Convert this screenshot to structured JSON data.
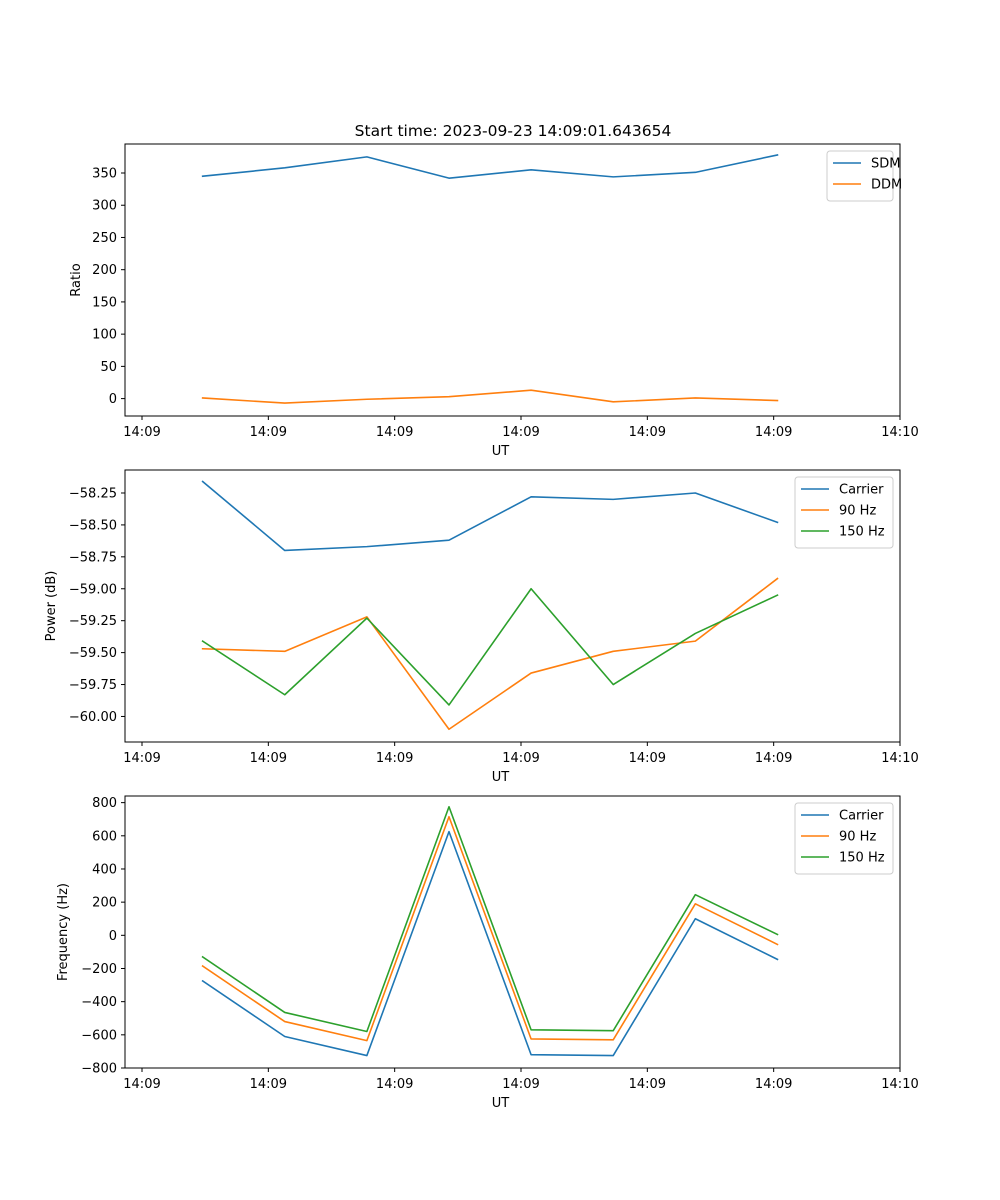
{
  "figure": {
    "title": "Start time: 2023-09-23 14:09:01.643654"
  },
  "chart_data": [
    {
      "type": "line",
      "title": "Start time: 2023-09-23 14:09:01.643654",
      "xlabel": "UT",
      "ylabel": "Ratio",
      "x_tick_labels": [
        "14:09",
        "14:09",
        "14:09",
        "14:09",
        "14:09",
        "14:09",
        "14:10"
      ],
      "x": [
        0.48,
        1.13,
        1.78,
        2.43,
        3.08,
        3.73,
        4.38,
        5.03
      ],
      "xlim": [
        0,
        6
      ],
      "ylim": [
        -27,
        395
      ],
      "y_ticks": [
        0,
        50,
        100,
        150,
        200,
        250,
        300,
        350
      ],
      "y_tick_labels": [
        "0",
        "50",
        "100",
        "150",
        "200",
        "250",
        "300",
        "350"
      ],
      "legend": "upper right",
      "series": [
        {
          "name": "SDM",
          "color": "#1f77b4",
          "values": [
            345,
            358,
            375,
            342,
            355,
            344,
            351,
            378
          ]
        },
        {
          "name": "DDM",
          "color": "#ff7f0e",
          "values": [
            1,
            -7,
            -1,
            3,
            13,
            -5,
            1,
            -3
          ]
        }
      ]
    },
    {
      "type": "line",
      "xlabel": "UT",
      "ylabel": "Power (dB)",
      "x_tick_labels": [
        "14:09",
        "14:09",
        "14:09",
        "14:09",
        "14:09",
        "14:09",
        "14:10"
      ],
      "x": [
        0.48,
        1.13,
        1.78,
        2.43,
        3.08,
        3.73,
        4.38,
        5.03
      ],
      "xlim": [
        0,
        6
      ],
      "ylim": [
        -60.2,
        -58.07
      ],
      "y_ticks": [
        -60.0,
        -59.75,
        -59.5,
        -59.25,
        -59.0,
        -58.75,
        -58.5,
        -58.25
      ],
      "y_tick_labels": [
        "−60.00",
        "−59.75",
        "−59.50",
        "−59.25",
        "−59.00",
        "−58.75",
        "−58.50",
        "−58.25"
      ],
      "legend": "upper right",
      "series": [
        {
          "name": "Carrier",
          "color": "#1f77b4",
          "values": [
            -58.16,
            -58.7,
            -58.67,
            -58.62,
            -58.28,
            -58.3,
            -58.25,
            -58.48
          ]
        },
        {
          "name": "90 Hz",
          "color": "#ff7f0e",
          "values": [
            -59.47,
            -59.49,
            -59.22,
            -60.1,
            -59.66,
            -59.49,
            -59.41,
            -58.92
          ]
        },
        {
          "name": "150 Hz",
          "color": "#2ca02c",
          "values": [
            -59.41,
            -59.83,
            -59.23,
            -59.91,
            -59.0,
            -59.75,
            -59.35,
            -59.05
          ]
        }
      ]
    },
    {
      "type": "line",
      "xlabel": "UT",
      "ylabel": "Frequency (Hz)",
      "x_tick_labels": [
        "14:09",
        "14:09",
        "14:09",
        "14:09",
        "14:09",
        "14:09",
        "14:10"
      ],
      "x": [
        0.48,
        1.13,
        1.78,
        2.43,
        3.08,
        3.73,
        4.38,
        5.03
      ],
      "xlim": [
        0,
        6
      ],
      "ylim": [
        -800,
        840
      ],
      "y_ticks": [
        -800,
        -600,
        -400,
        -200,
        0,
        200,
        400,
        600,
        800
      ],
      "y_tick_labels": [
        "−800",
        "−600",
        "−400",
        "−200",
        "0",
        "200",
        "400",
        "600",
        "800"
      ],
      "legend": "upper right",
      "series": [
        {
          "name": "Carrier",
          "color": "#1f77b4",
          "values": [
            -275,
            -610,
            -725,
            625,
            -720,
            -725,
            100,
            -145
          ]
        },
        {
          "name": "90 Hz",
          "color": "#ff7f0e",
          "values": [
            -185,
            -520,
            -635,
            715,
            -625,
            -630,
            190,
            -55
          ]
        },
        {
          "name": "150 Hz",
          "color": "#2ca02c",
          "values": [
            -130,
            -465,
            -580,
            775,
            -570,
            -575,
            245,
            5
          ]
        }
      ]
    }
  ]
}
